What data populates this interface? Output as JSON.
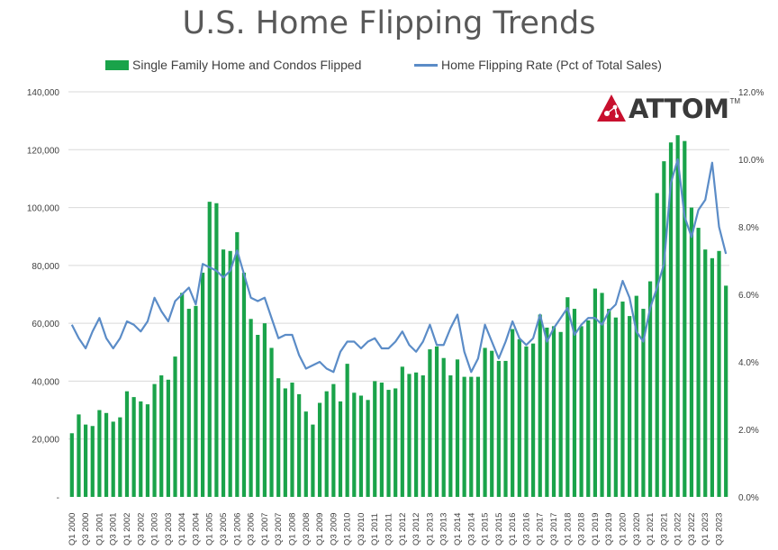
{
  "logo": {
    "text": "ATTOM",
    "tm": "TM"
  },
  "colors": {
    "bars": "#1aa34a",
    "line": "#5b8cc7",
    "grid": "#d9d9d9",
    "text": "#404040",
    "logo_red": "#c8102e"
  },
  "chart_data": {
    "type": "bar",
    "title": "U.S. Home Flipping Trends",
    "xlabel": "",
    "ylabel": "",
    "ylim": [
      0,
      140000
    ],
    "y2lim": [
      0.0,
      12.0
    ],
    "y_ticks": [
      "-",
      "20,000",
      "40,000",
      "60,000",
      "80,000",
      "100,000",
      "120,000",
      "140,000"
    ],
    "y2_ticks": [
      "0.0%",
      "2.0%",
      "4.0%",
      "6.0%",
      "8.0%",
      "10.0%",
      "12.0%"
    ],
    "legend_position": "top",
    "grid": true,
    "x_tick_labels": [
      "Q1 2000",
      "Q3 2000",
      "Q1 2001",
      "Q3 2001",
      "Q1 2002",
      "Q3 2002",
      "Q1 2003",
      "Q3 2003",
      "Q1 2004",
      "Q3 2004",
      "Q1 2005",
      "Q3 2005",
      "Q1 2006",
      "Q3 2006",
      "Q1 2007",
      "Q3 2007",
      "Q1 2008",
      "Q3 2008",
      "Q1 2009",
      "Q3 2009",
      "Q1 2010",
      "Q3 2010",
      "Q1 2011",
      "Q3 2011",
      "Q1 2012",
      "Q3 2012",
      "Q1 2013",
      "Q3 2013",
      "Q1 2014",
      "Q3 2014",
      "Q1 2015",
      "Q3 2015",
      "Q1 2016",
      "Q3 2016",
      "Q1 2017",
      "Q3 2017",
      "Q1 2018",
      "Q3 2018",
      "Q1 2019",
      "Q3 2019",
      "Q1 2020",
      "Q3 2020",
      "Q1 2021",
      "Q3 2021",
      "Q1 2022",
      "Q3 2022",
      "Q1 2023",
      "Q3 2023"
    ],
    "series": [
      {
        "name": "Single Family Home and Condos Flipped",
        "kind": "bar",
        "values": [
          22000,
          28500,
          25000,
          24500,
          30000,
          29000,
          26000,
          27500,
          36500,
          34500,
          33000,
          32000,
          39000,
          42000,
          40500,
          48500,
          70500,
          65000,
          66000,
          77500,
          102000,
          101500,
          85500,
          85000,
          91500,
          77500,
          61500,
          56000,
          60000,
          51500,
          41000,
          37500,
          39500,
          35500,
          29500,
          25000,
          32500,
          36500,
          39000,
          33000,
          46000,
          36000,
          35000,
          33500,
          40000,
          39500,
          37000,
          37500,
          45000,
          42500,
          43000,
          42000,
          51000,
          52000,
          48000,
          42000,
          47500,
          41500,
          41500,
          41500,
          51500,
          50500,
          47000,
          47000,
          58000,
          54500,
          52000,
          53000,
          63000,
          58500,
          59000,
          57000,
          69000,
          65000,
          59000,
          61000,
          72000,
          70500,
          65000,
          62000,
          67500,
          62500,
          69500,
          65000,
          74500,
          105000,
          116000,
          122500,
          125000,
          123000,
          100000,
          93000,
          85500,
          82500,
          85000,
          73000
        ]
      },
      {
        "name": "Home Flipping Rate (Pct of Total Sales)",
        "kind": "line",
        "axis": "right",
        "values": [
          5.1,
          4.7,
          4.4,
          4.9,
          5.3,
          4.7,
          4.4,
          4.7,
          5.2,
          5.1,
          4.9,
          5.2,
          5.9,
          5.5,
          5.2,
          5.8,
          6.0,
          6.2,
          5.7,
          6.9,
          6.8,
          6.7,
          6.5,
          6.7,
          7.3,
          6.6,
          5.9,
          5.8,
          5.9,
          5.3,
          4.7,
          4.8,
          4.8,
          4.2,
          3.8,
          3.9,
          4.0,
          3.8,
          3.7,
          4.3,
          4.6,
          4.6,
          4.4,
          4.6,
          4.7,
          4.4,
          4.4,
          4.6,
          4.9,
          4.5,
          4.3,
          4.6,
          5.1,
          4.5,
          4.5,
          5.0,
          5.4,
          4.3,
          3.7,
          4.1,
          5.1,
          4.6,
          4.1,
          4.6,
          5.2,
          4.7,
          4.5,
          4.7,
          5.4,
          4.6,
          5.0,
          5.3,
          5.6,
          4.8,
          5.1,
          5.3,
          5.3,
          5.1,
          5.5,
          5.7,
          6.4,
          5.9,
          4.9,
          4.6,
          5.6,
          6.2,
          6.9,
          9.3,
          10.0,
          8.3,
          7.7,
          8.5,
          8.8,
          9.9,
          8.0,
          7.2
        ]
      }
    ]
  }
}
